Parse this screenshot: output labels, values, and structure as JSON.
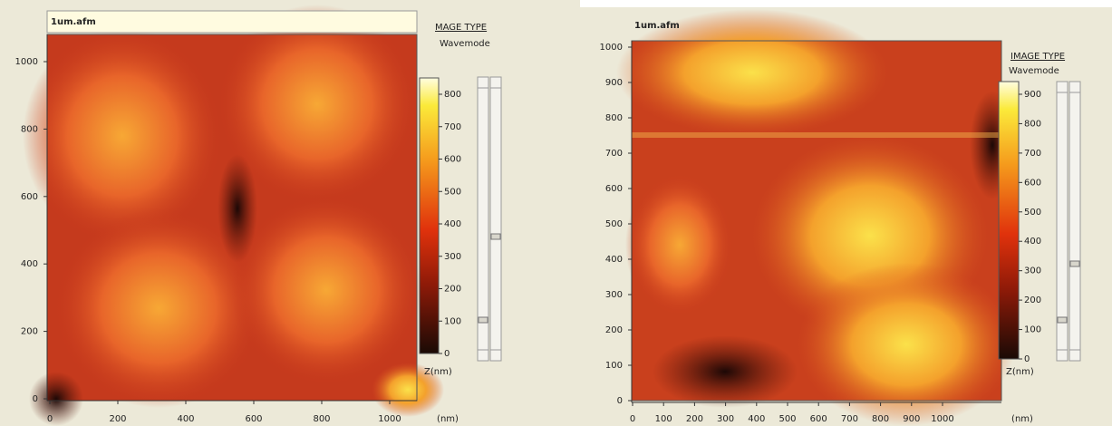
{
  "panels": [
    {
      "title": "1um.afm",
      "image_type": "MAGE TYPE",
      "mode": "Wavemode",
      "x_unit": "(nm)",
      "z_label": "Z(nm)",
      "yticks": [
        0,
        200,
        400,
        600,
        800,
        1000
      ],
      "xticks": [
        0,
        200,
        400,
        600,
        800,
        1000
      ],
      "zticks": [
        0,
        100,
        200,
        300,
        400,
        500,
        600,
        700,
        800
      ]
    },
    {
      "title": "1um.afm",
      "image_type": "IMAGE TYPE",
      "mode": "Wavemode",
      "x_unit": "(nm)",
      "z_label": "Z(nm)",
      "yticks": [
        0,
        100,
        200,
        300,
        400,
        500,
        600,
        700,
        800,
        900,
        1000
      ],
      "xticks": [
        0,
        100,
        200,
        300,
        400,
        500,
        600,
        700,
        800,
        900,
        1000
      ],
      "zticks": [
        0,
        100,
        200,
        300,
        400,
        500,
        600,
        700,
        800,
        900
      ]
    }
  ]
}
